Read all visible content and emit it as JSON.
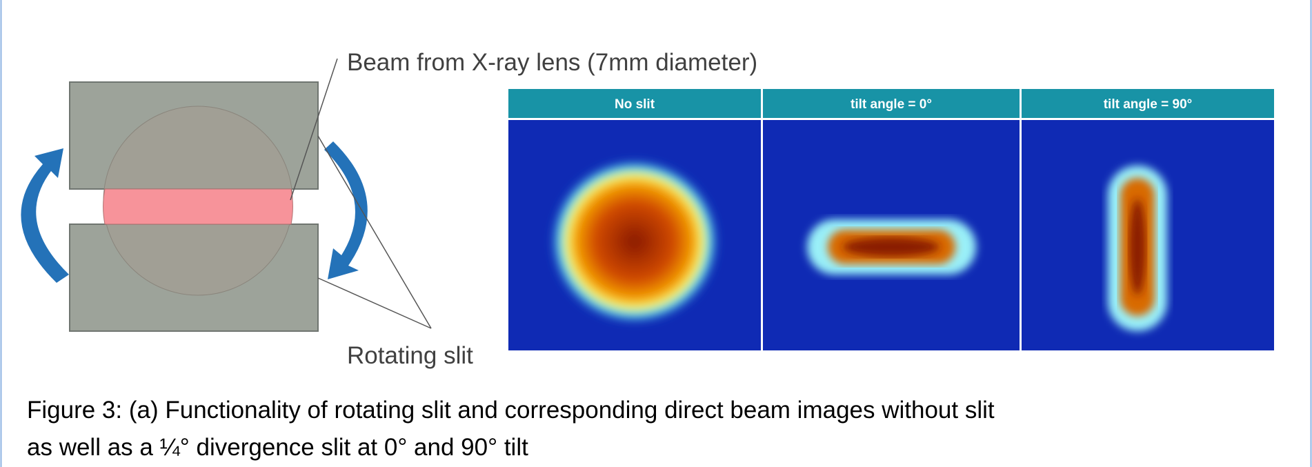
{
  "figure": {
    "beam_label": "Beam from X-ray lens (7mm diameter)",
    "slit_label": "Rotating slit",
    "panels": [
      "No slit",
      "tilt angle = 0°",
      "tilt angle = 90°"
    ],
    "caption": [
      "Figure 3: (a) Functionality of rotating slit and corresponding direct beam images without slit",
      "as well as a ¼° divergence slit at 0° and 90° tilt"
    ]
  }
}
